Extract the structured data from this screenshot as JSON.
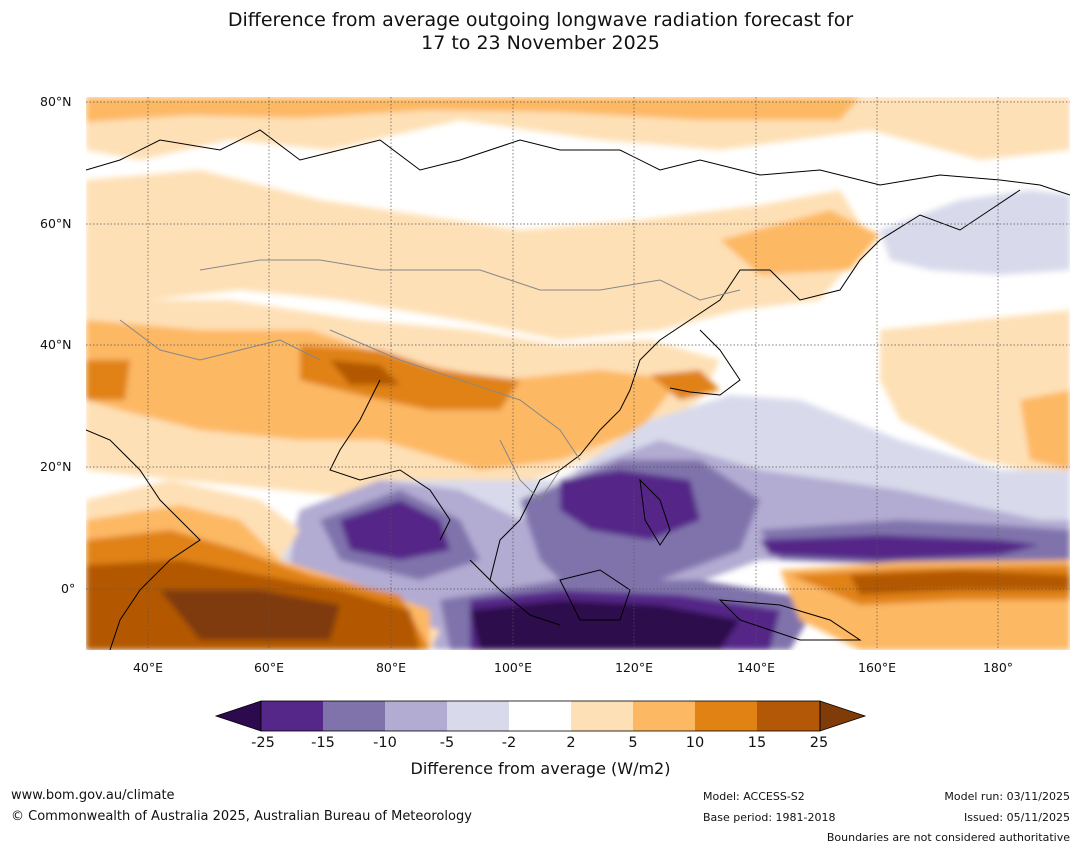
{
  "title": {
    "line1": "Difference from average outgoing longwave radiation forecast for",
    "line2": "17 to 23 November 2025"
  },
  "map": {
    "region": "Asia and western Pacific",
    "lat_labels": [
      "80°N",
      "60°N",
      "40°N",
      "20°N",
      "0°"
    ],
    "lon_labels": [
      "40°E",
      "60°E",
      "80°E",
      "100°E",
      "120°E",
      "140°E",
      "160°E",
      "180°"
    ],
    "colors": {
      "water": "#ffffff",
      "coast": "#000000",
      "border": "#888888",
      "grid": "#555555"
    }
  },
  "colorbar": {
    "title": "Difference from average (W/m2)",
    "ticks": [
      "-25",
      "-15",
      "-10",
      "-5",
      "-2",
      "2",
      "5",
      "10",
      "15",
      "25"
    ],
    "low_extend_color": "#2d0a4e",
    "high_extend_color": "#7f3b08",
    "bins": [
      {
        "from": "-25",
        "to": "-15",
        "color": "#542788"
      },
      {
        "from": "-15",
        "to": "-10",
        "color": "#8073ac"
      },
      {
        "from": "-10",
        "to": "-5",
        "color": "#b2abd2"
      },
      {
        "from": "-5",
        "to": "-2",
        "color": "#d8daeb"
      },
      {
        "from": "-2",
        "to": "2",
        "color": "#ffffff"
      },
      {
        "from": "2",
        "to": "5",
        "color": "#fee0b6"
      },
      {
        "from": "5",
        "to": "10",
        "color": "#fdb863"
      },
      {
        "from": "10",
        "to": "15",
        "color": "#e08214"
      },
      {
        "from": "15",
        "to": "25",
        "color": "#b35806"
      }
    ]
  },
  "footer": {
    "url": "www.bom.gov.au/climate",
    "copyright": "© Commonwealth of Australia 2025, Australian Bureau of Meteorology",
    "model": "Model: ACCESS-S2",
    "base_period": "Base period: 1981-2018",
    "model_run": "Model run: 03/11/2025",
    "issued": "Issued: 05/11/2025",
    "disclaimer": "Boundaries are not considered authoritative"
  }
}
